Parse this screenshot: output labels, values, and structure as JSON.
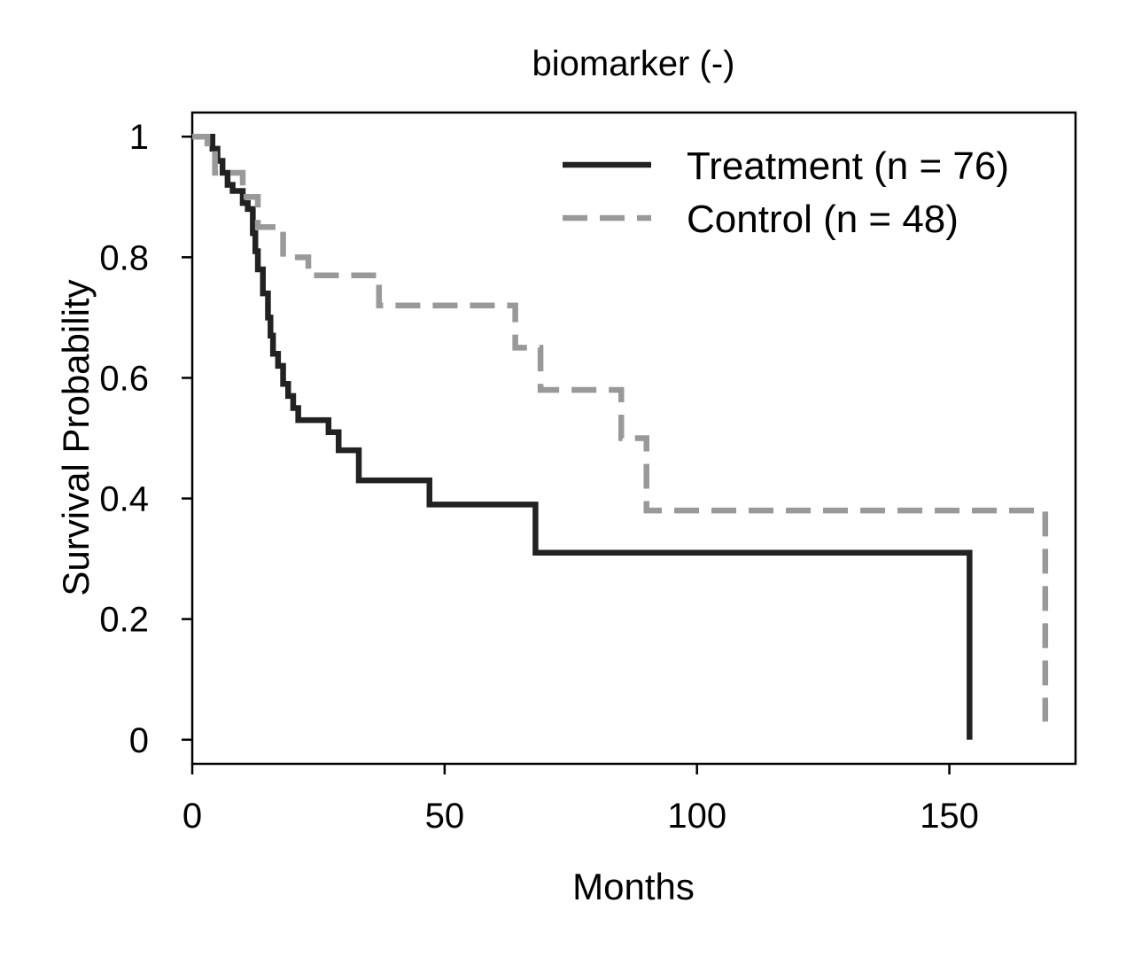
{
  "chart_data": {
    "type": "line",
    "subtype": "kaplan-meier step",
    "title": "biomarker (-)",
    "xlabel": "Months",
    "ylabel": "Survival Probability",
    "xlim": [
      0,
      175
    ],
    "ylim": [
      -0.04,
      1.04
    ],
    "xticks": [
      0,
      50,
      100,
      150
    ],
    "xtick_labels": [
      "0",
      "50",
      "100",
      "150"
    ],
    "yticks": [
      0,
      0.2,
      0.4,
      0.6,
      0.8,
      1
    ],
    "ytick_labels": [
      "0",
      "0.2",
      "0.4",
      "0.6",
      "0.8",
      "1"
    ],
    "grid": false,
    "legend_position": "top-right",
    "series": [
      {
        "name": "Treatment (n = 76)",
        "color": "#222222",
        "line_style": "solid",
        "x": [
          0,
          4,
          5,
          6,
          7,
          8,
          10,
          11,
          12,
          12.5,
          13,
          14,
          15,
          15.5,
          16,
          17,
          18,
          19,
          20,
          21,
          27,
          29,
          33,
          47,
          68,
          154
        ],
        "y": [
          1,
          0.98,
          0.96,
          0.94,
          0.92,
          0.91,
          0.89,
          0.88,
          0.84,
          0.81,
          0.78,
          0.74,
          0.7,
          0.67,
          0.64,
          0.62,
          0.59,
          0.57,
          0.55,
          0.53,
          0.51,
          0.48,
          0.43,
          0.39,
          0.31,
          0
        ]
      },
      {
        "name": "Control (n = 48)",
        "color": "#999999",
        "line_style": "dashed",
        "x": [
          0,
          3,
          4.5,
          10,
          13,
          18,
          23,
          37,
          64,
          69,
          85,
          90,
          169
        ],
        "y": [
          1,
          0.98,
          0.94,
          0.9,
          0.85,
          0.8,
          0.77,
          0.72,
          0.65,
          0.58,
          0.5,
          0.38,
          0.03
        ]
      }
    ]
  }
}
